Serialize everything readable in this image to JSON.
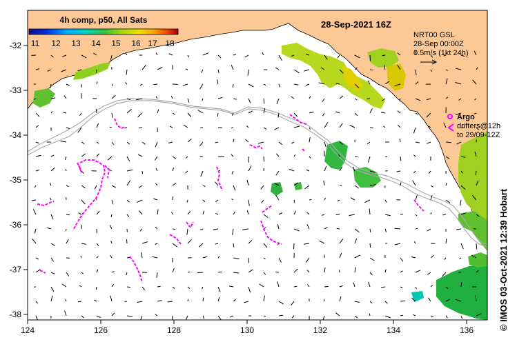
{
  "map": {
    "date_title": "28-Sep-2021 16Z",
    "colorbar": {
      "title": "4h comp, p50, All Sats",
      "labels": [
        "11",
        "12",
        "13",
        "14",
        "15",
        "16",
        "17",
        "18"
      ],
      "colors": [
        "#1010a0",
        "#0040ff",
        "#00a0ff",
        "#00d0d0",
        "#20c060",
        "#80d020",
        "#d0e000",
        "#ffc000",
        "#ff7000",
        "#e02000",
        "#900000"
      ]
    },
    "legend": {
      "line1": "NRT00 GSL",
      "line2": "28-Sep 00:00Z",
      "line3": "0.5m/s (1kt 24h)"
    },
    "argo": {
      "symbol": "Argo",
      "drifters_line1": "drifters@12h",
      "drifters_line2": "to 29/09-12Z"
    },
    "lon_ticks": [
      "124",
      "126",
      "128",
      "130",
      "132",
      "134",
      "136"
    ],
    "lat_ticks": [
      "-32",
      "-33",
      "-34",
      "-35",
      "-36",
      "-37",
      "-38"
    ],
    "credit": "© IMOS 03-Oct-2021 12:39 Hobart",
    "colors": {
      "land": "#fcc896",
      "argo": "#ff00ff",
      "isobath": "#aaaaaa"
    }
  }
}
